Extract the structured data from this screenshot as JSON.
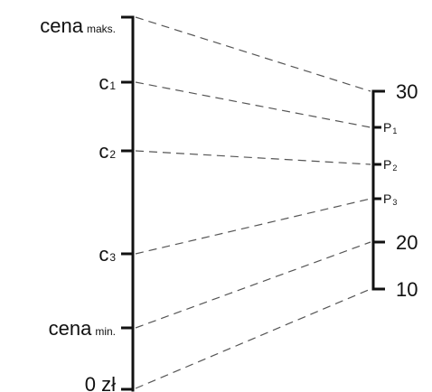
{
  "diagram": {
    "left_scale": {
      "labels": [
        {
          "id": "cena-maks",
          "main": "cena",
          "sub": "maks."
        },
        {
          "id": "c1",
          "main": "c",
          "sub": "1"
        },
        {
          "id": "c2",
          "main": "c",
          "sub": "2"
        },
        {
          "id": "c3",
          "main": "c",
          "sub": "3"
        },
        {
          "id": "cena-min",
          "main": "cena",
          "sub": "min."
        },
        {
          "id": "zero",
          "main": "0 zł",
          "sub": ""
        }
      ]
    },
    "right_scale": {
      "labels": [
        {
          "id": "r30",
          "main": "30",
          "sub": ""
        },
        {
          "id": "p1",
          "main": "P",
          "sub": "1"
        },
        {
          "id": "p2",
          "main": "P",
          "sub": "2"
        },
        {
          "id": "p3",
          "main": "P",
          "sub": "3"
        },
        {
          "id": "r20",
          "main": "20",
          "sub": ""
        },
        {
          "id": "r10",
          "main": "10",
          "sub": ""
        }
      ]
    },
    "connections": [
      {
        "from": "cena-maks",
        "to": "r30"
      },
      {
        "from": "c1",
        "to": "p1"
      },
      {
        "from": "c2",
        "to": "p2"
      },
      {
        "from": "c3",
        "to": "p3"
      },
      {
        "from": "cena-min",
        "to": "r20"
      },
      {
        "from": "zero",
        "to": "r10"
      }
    ]
  }
}
